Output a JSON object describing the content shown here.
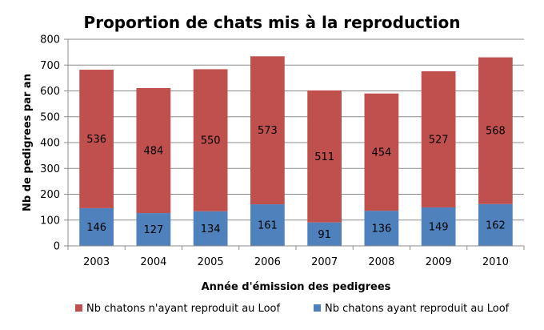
{
  "chart_data": {
    "type": "bar",
    "stacked": true,
    "title": "Proportion de chats mis à la reproduction",
    "xlabel": "Année d'émission des pedigrees",
    "ylabel": "Nb de pedigrees par an",
    "ylim": [
      0,
      800
    ],
    "yticks": [
      0,
      100,
      200,
      300,
      400,
      500,
      600,
      700,
      800
    ],
    "grid": true,
    "legend_position": "bottom",
    "categories": [
      "2003",
      "2004",
      "2005",
      "2006",
      "2007",
      "2008",
      "2009",
      "2010"
    ],
    "series": [
      {
        "name": "Nb chatons ayant reproduit au Loof",
        "color": "#4F81BD",
        "values": [
          146,
          127,
          134,
          161,
          91,
          136,
          149,
          162
        ]
      },
      {
        "name": "Nb chatons n'ayant reproduit au Loof",
        "color": "#C0504D",
        "values": [
          536,
          484,
          550,
          573,
          511,
          454,
          527,
          568
        ]
      }
    ],
    "legend_order": [
      1,
      0
    ]
  }
}
